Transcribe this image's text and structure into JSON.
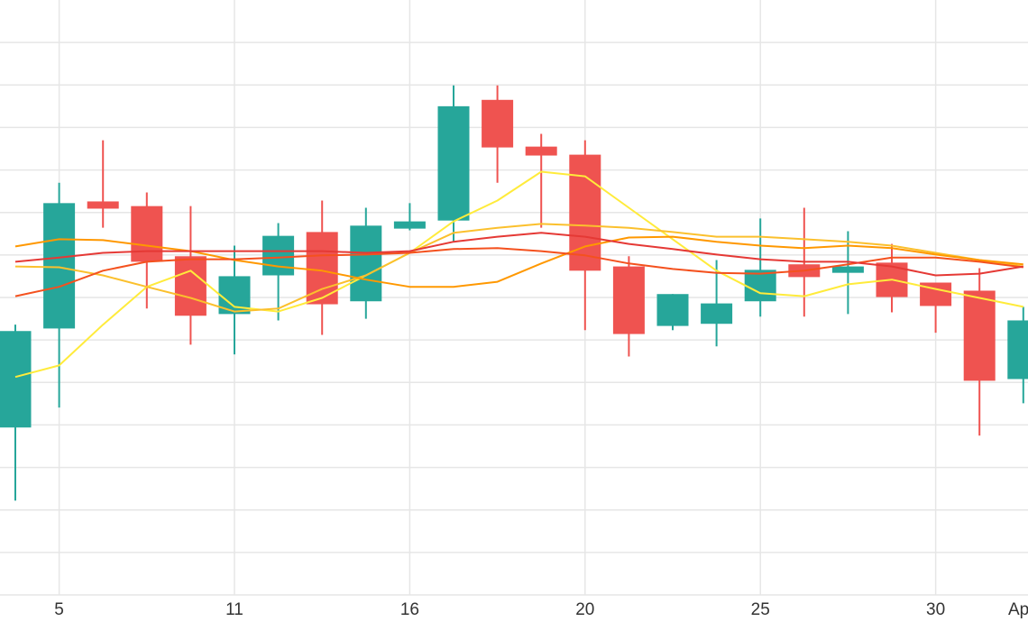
{
  "chart_data": {
    "type": "candlestick",
    "categories": [
      null,
      "5",
      null,
      null,
      null,
      "11",
      null,
      null,
      null,
      "16",
      null,
      null,
      null,
      "20",
      null,
      null,
      null,
      "25",
      null,
      null,
      null,
      "30",
      null,
      "Ap"
    ],
    "open": [
      3.94,
      6.27,
      9.26,
      9.15,
      7.97,
      6.61,
      7.52,
      8.54,
      6.91,
      8.62,
      8.81,
      11.65,
      10.55,
      10.36,
      7.73,
      6.33,
      6.38,
      6.91,
      7.78,
      7.58,
      7.82,
      7.35,
      7.16,
      5.08
    ],
    "high": [
      6.36,
      9.7,
      10.7,
      9.47,
      9.15,
      8.22,
      8.75,
      9.28,
      9.11,
      9.22,
      11.99,
      11.99,
      10.85,
      10.7,
      7.97,
      7.08,
      7.88,
      8.86,
      9.11,
      8.56,
      8.26,
      7.35,
      7.69,
      6.78
    ],
    "low": [
      2.22,
      4.41,
      8.64,
      6.74,
      5.89,
      5.66,
      6.46,
      6.12,
      6.5,
      8.58,
      8.31,
      9.7,
      8.64,
      6.23,
      5.61,
      6.23,
      5.85,
      6.55,
      6.55,
      6.61,
      6.65,
      6.17,
      3.75,
      4.51
    ],
    "close": [
      6.21,
      9.22,
      9.09,
      7.84,
      6.57,
      7.5,
      8.45,
      6.84,
      8.69,
      8.79,
      11.5,
      10.53,
      10.34,
      7.63,
      6.14,
      7.08,
      6.86,
      7.65,
      7.48,
      7.73,
      7.01,
      6.8,
      5.04,
      6.46
    ],
    "up_color": "#26a69a",
    "down_color": "#ef5350",
    "series": [
      {
        "color": "#ffeb3b",
        "values": [
          5.13,
          5.4,
          6.36,
          7.25,
          7.63,
          6.78,
          6.67,
          6.99,
          7.52,
          8.05,
          8.79,
          9.28,
          9.96,
          9.85,
          9.11,
          8.37,
          7.63,
          7.1,
          7.03,
          7.31,
          7.42,
          7.2,
          6.99,
          6.78
        ]
      },
      {
        "color": "#fbc02d",
        "values": [
          7.73,
          7.71,
          7.52,
          7.25,
          6.99,
          6.67,
          6.74,
          7.2,
          7.52,
          8.05,
          8.52,
          8.64,
          8.73,
          8.69,
          8.64,
          8.54,
          8.43,
          8.43,
          8.37,
          8.31,
          8.22,
          8.05,
          7.88,
          7.73
        ]
      },
      {
        "color": "#ff9800",
        "values": [
          8.2,
          8.37,
          8.35,
          8.22,
          8.09,
          7.88,
          7.73,
          7.63,
          7.42,
          7.25,
          7.25,
          7.37,
          7.8,
          8.2,
          8.41,
          8.43,
          8.31,
          8.22,
          8.16,
          8.22,
          8.16,
          8.01,
          7.88,
          7.78
        ]
      },
      {
        "color": "#f4511e",
        "values": [
          7.03,
          7.25,
          7.63,
          7.84,
          7.9,
          7.9,
          7.94,
          7.99,
          8.01,
          8.05,
          8.14,
          8.16,
          8.09,
          7.99,
          7.8,
          7.67,
          7.58,
          7.56,
          7.63,
          7.78,
          7.94,
          7.94,
          7.84,
          7.71
        ]
      },
      {
        "color": "#e53935",
        "values": [
          7.84,
          7.94,
          8.05,
          8.09,
          8.09,
          8.09,
          8.09,
          8.09,
          8.05,
          8.09,
          8.31,
          8.43,
          8.52,
          8.43,
          8.26,
          8.14,
          8.01,
          7.9,
          7.84,
          7.84,
          7.73,
          7.52,
          7.56,
          7.73
        ]
      }
    ],
    "ylim": [
      0,
      14
    ],
    "yticks": [
      1,
      2,
      3,
      4,
      5,
      6,
      7,
      8,
      9,
      10,
      11,
      12,
      13
    ],
    "grid": true
  }
}
